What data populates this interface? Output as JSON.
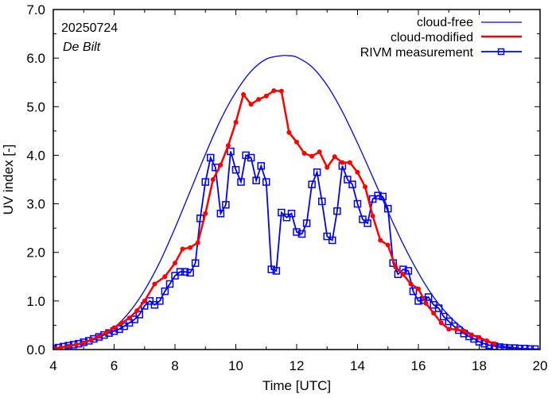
{
  "chart_data": {
    "type": "line",
    "title": "",
    "annotations": {
      "date": "20250724",
      "location": "De Bilt"
    },
    "xlabel": "Time  [UTC]",
    "ylabel": "UV index  [-]",
    "xlim": [
      4,
      20
    ],
    "ylim": [
      0,
      7
    ],
    "xticks": [
      4,
      6,
      8,
      10,
      12,
      14,
      16,
      18,
      20
    ],
    "xtick_labels": [
      "4",
      "6",
      "8",
      "10",
      "12",
      "14",
      "16",
      "18",
      "20"
    ],
    "yticks": [
      0,
      1,
      2,
      3,
      4,
      5,
      6,
      7
    ],
    "ytick_labels": [
      "0.0",
      "1.0",
      "2.0",
      "3.0",
      "4.0",
      "5.0",
      "6.0",
      "7.0"
    ],
    "grid": false,
    "legend_position": "top-right",
    "series": [
      {
        "name": "cloud-free",
        "color": "#0000ff",
        "style": "line",
        "peak_time": 11.72,
        "peak_value": 6.05,
        "x": [
          4.0,
          4.5,
          5.0,
          5.5,
          6.0,
          6.5,
          7.0,
          7.5,
          8.0,
          8.5,
          9.0,
          9.5,
          10.0,
          10.5,
          11.0,
          11.5,
          11.72,
          12.0,
          12.5,
          13.0,
          13.5,
          14.0,
          14.5,
          15.0,
          15.5,
          16.0,
          16.5,
          17.0,
          17.5,
          18.0,
          18.5,
          19.0,
          19.5,
          20.0
        ],
        "y": [
          0.02,
          0.06,
          0.13,
          0.25,
          0.45,
          0.77,
          1.22,
          1.8,
          2.5,
          3.26,
          4.02,
          4.73,
          5.3,
          5.73,
          5.98,
          6.05,
          6.05,
          6.02,
          5.82,
          5.44,
          4.9,
          4.25,
          3.55,
          2.84,
          2.17,
          1.58,
          1.08,
          0.7,
          0.42,
          0.23,
          0.11,
          0.05,
          0.02,
          0.01
        ]
      },
      {
        "name": "cloud-modified",
        "color": "#ff0000",
        "style": "line-dots",
        "x": [
          4.0,
          4.25,
          4.5,
          4.75,
          5.0,
          5.25,
          5.5,
          5.75,
          6.0,
          6.25,
          6.5,
          6.75,
          7.0,
          7.33,
          7.67,
          8.0,
          8.25,
          8.5,
          8.75,
          9.0,
          9.25,
          9.5,
          9.75,
          10.0,
          10.25,
          10.5,
          10.75,
          11.0,
          11.25,
          11.5,
          11.75,
          12.0,
          12.25,
          12.5,
          12.75,
          13.0,
          13.25,
          13.5,
          13.75,
          14.0,
          14.25,
          14.5,
          14.75,
          15.0,
          15.25,
          15.5,
          15.75,
          16.0,
          16.25,
          16.5,
          16.75,
          17.0,
          17.25,
          17.5,
          17.75,
          18.0,
          18.25,
          18.5
        ],
        "y": [
          0.02,
          0.04,
          0.07,
          0.1,
          0.14,
          0.2,
          0.27,
          0.35,
          0.45,
          0.55,
          0.65,
          0.8,
          1.0,
          1.35,
          1.5,
          1.78,
          2.07,
          2.1,
          2.2,
          2.8,
          3.5,
          3.8,
          4.2,
          4.68,
          5.25,
          5.05,
          5.15,
          5.22,
          5.33,
          5.32,
          4.47,
          4.27,
          4.04,
          3.98,
          4.07,
          3.75,
          3.97,
          3.85,
          3.85,
          3.65,
          3.35,
          2.75,
          2.25,
          2.15,
          1.7,
          1.55,
          1.35,
          1.25,
          0.95,
          0.75,
          0.55,
          0.42,
          0.42,
          0.38,
          0.3,
          0.25,
          0.18,
          0.12
        ]
      },
      {
        "name": "RIVM measurement",
        "color": "#0000ff",
        "style": "line-squares",
        "x": [
          4.0,
          4.17,
          4.33,
          4.5,
          4.67,
          4.83,
          5.0,
          5.17,
          5.33,
          5.5,
          5.67,
          5.83,
          6.0,
          6.17,
          6.33,
          6.5,
          6.67,
          6.83,
          7.0,
          7.17,
          7.33,
          7.5,
          7.67,
          7.83,
          8.0,
          8.17,
          8.33,
          8.5,
          8.67,
          8.83,
          9.0,
          9.17,
          9.33,
          9.5,
          9.67,
          9.83,
          10.0,
          10.17,
          10.33,
          10.5,
          10.67,
          10.83,
          11.0,
          11.17,
          11.33,
          11.5,
          11.67,
          11.83,
          12.0,
          12.17,
          12.33,
          12.5,
          12.67,
          12.83,
          13.0,
          13.17,
          13.33,
          13.5,
          13.67,
          13.83,
          14.0,
          14.17,
          14.33,
          14.5,
          14.67,
          14.83,
          15.0,
          15.17,
          15.33,
          15.5,
          15.67,
          15.83,
          16.0,
          16.17,
          16.33,
          16.5,
          16.67,
          16.83,
          17.0,
          17.17,
          17.33,
          17.5,
          17.67,
          17.83,
          18.0,
          18.17,
          18.33,
          18.5,
          18.67,
          18.83,
          19.0,
          19.17,
          19.33,
          19.5,
          19.67,
          19.83
        ],
        "y": [
          0.02,
          0.04,
          0.06,
          0.08,
          0.1,
          0.12,
          0.15,
          0.18,
          0.22,
          0.26,
          0.3,
          0.34,
          0.38,
          0.42,
          0.48,
          0.55,
          0.62,
          0.72,
          0.9,
          1.0,
          0.92,
          1.0,
          1.2,
          1.35,
          1.52,
          1.6,
          1.6,
          1.58,
          1.78,
          2.7,
          3.45,
          3.95,
          3.75,
          2.8,
          2.98,
          4.08,
          3.7,
          3.45,
          4.0,
          3.95,
          3.48,
          3.78,
          3.45,
          1.65,
          1.62,
          2.82,
          2.72,
          2.8,
          2.42,
          2.38,
          2.6,
          3.4,
          3.65,
          3.05,
          2.33,
          2.25,
          2.85,
          3.78,
          3.5,
          3.4,
          3.0,
          2.68,
          2.6,
          3.1,
          3.17,
          3.15,
          2.9,
          1.78,
          1.55,
          1.65,
          1.62,
          1.2,
          1.0,
          1.02,
          1.08,
          0.92,
          0.85,
          0.68,
          0.58,
          0.48,
          0.4,
          0.33,
          0.27,
          0.22,
          0.16,
          0.12,
          0.09,
          0.07,
          0.05,
          0.04,
          0.03,
          0.03,
          0.02,
          0.02,
          0.01,
          0.01
        ]
      }
    ]
  }
}
